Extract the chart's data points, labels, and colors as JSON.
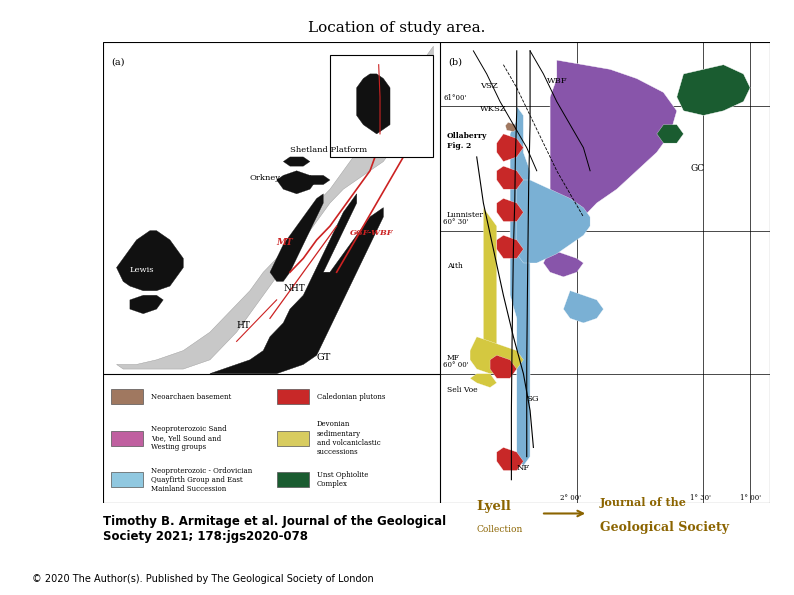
{
  "title": "Location of study area.",
  "title_fontsize": 11,
  "bg_color": "#ffffff",
  "author_text": "Timothy B. Armitage et al. Journal of the Geological\nSociety 2021; 178:jgs2020-078",
  "author_fontsize": 8.5,
  "copyright_text": "© 2020 The Author(s). Published by The Geological Society of London",
  "copyright_fontsize": 7,
  "panel_a_label": "(a)",
  "panel_b_label": "(b)",
  "shelf_color": "#c8c8c8",
  "land_color": "#111111",
  "fault_color": "#cc2222",
  "legend_items_left": [
    {
      "color": "#a07860",
      "label": "Neoarchaen basement"
    },
    {
      "color": "#c060a0",
      "label": "Neoproterozoic Sand\nVoe, Yell Sound and\nWesting groups"
    },
    {
      "color": "#90c8e0",
      "label": "Neoproterozoic - Ordovician\nQuayfirth Group and East\nMainland Succession"
    }
  ],
  "legend_items_right": [
    {
      "color": "#c82828",
      "label": "Caledonian plutons"
    },
    {
      "color": "#d8cc60",
      "label": "Devonian\nsedimentary\nand volcaniclastic\nsuccessions"
    },
    {
      "color": "#1a5c30",
      "label": "Unst Ophiolite\nComplex"
    }
  ],
  "geo_colors": {
    "purple": "#8855aa",
    "blue": "#7ab0d4",
    "yellow": "#d4c840",
    "red": "#c82828",
    "green_dark": "#1a5c30",
    "brown": "#a07860",
    "pink_small": "#b060a0"
  }
}
